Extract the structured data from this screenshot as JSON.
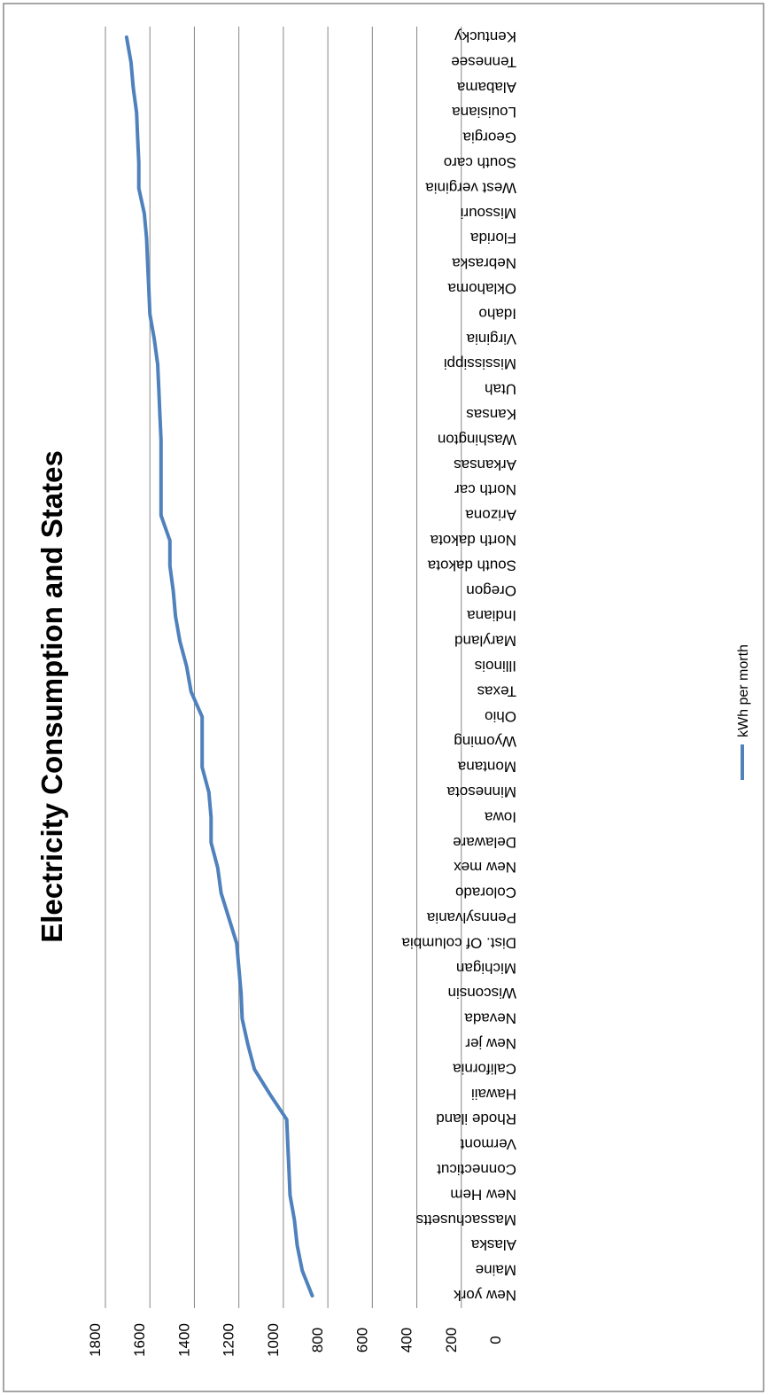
{
  "chart_data": {
    "type": "line",
    "title": "Electricity Consumption and States",
    "xlabel": "",
    "ylabel": "",
    "ylim": [
      0,
      1800
    ],
    "y_ticks": [
      0,
      200,
      400,
      600,
      800,
      1000,
      1200,
      1400,
      1600,
      1800
    ],
    "grid": true,
    "legend_position": "bottom",
    "orientation": "rotated 180 degrees",
    "categories": [
      "New york",
      "Maine",
      "Alaska",
      "Massachusetts",
      "New Hem",
      "Connecticut",
      "Vermont",
      "Rhode iland",
      "Hawaii",
      "California",
      "New jer",
      "Nevada",
      "Wisconsin",
      "Michigan",
      "Dist. Of columbia",
      "Pennsylvania",
      "Colorado",
      "New mex",
      "Delaware",
      "Iowa",
      "Minnesota",
      "Montana",
      "Wyoming",
      "Ohio",
      "Texas",
      "Illinois",
      "Maryland",
      "Indiana",
      "Oregon",
      "South dakota",
      "North dakota",
      "Arizona",
      "North car",
      "Arkansas",
      "Washington",
      "Kansas",
      "Utah",
      "Mississippi",
      "Virginia",
      "Idaho",
      "Oklahoma",
      "Nebraska",
      "Florida",
      "Missouri",
      "West verginia",
      "South caro",
      "Georgia",
      "Louisiana",
      "Alabama",
      "Tennesee",
      "Kentucky"
    ],
    "series": [
      {
        "name": "kWh per morth",
        "color": "#4f81bd",
        "values": [
          870,
          915,
          938,
          950,
          970,
          975,
          980,
          985,
          1060,
          1130,
          1160,
          1185,
          1190,
          1200,
          1210,
          1245,
          1280,
          1295,
          1325,
          1325,
          1335,
          1365,
          1365,
          1365,
          1415,
          1435,
          1465,
          1485,
          1495,
          1510,
          1510,
          1550,
          1550,
          1550,
          1550,
          1555,
          1560,
          1565,
          1580,
          1600,
          1605,
          1610,
          1615,
          1625,
          1650,
          1650,
          1655,
          1660,
          1675,
          1685,
          1705
        ]
      }
    ],
    "legend": [
      {
        "name": "kWh per morth",
        "color": "#4f81bd"
      }
    ]
  }
}
